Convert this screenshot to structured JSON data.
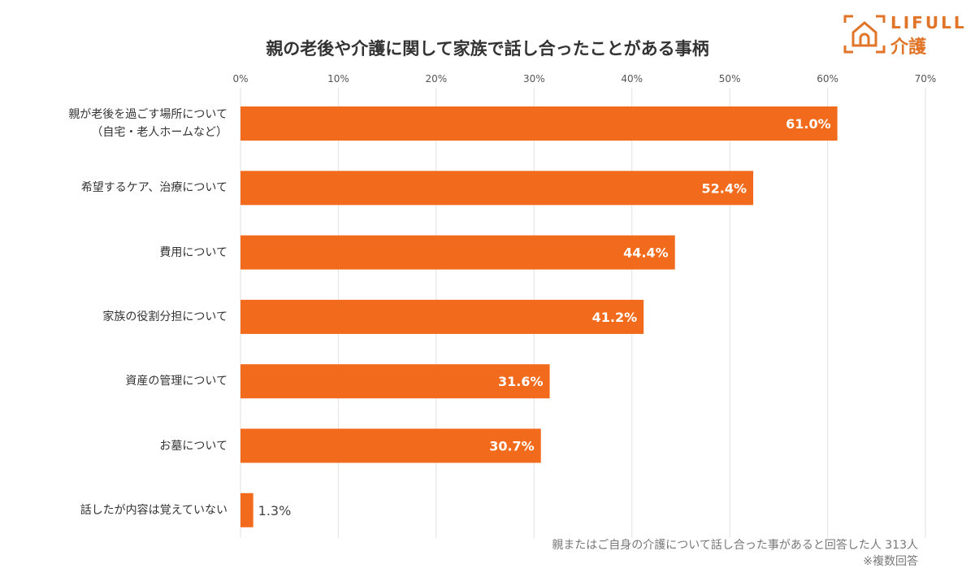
{
  "logo": {
    "text_top": "LIFULL",
    "text_bottom": "介護"
  },
  "chart_data": {
    "type": "bar",
    "orientation": "horizontal",
    "title": "親の老後や介護に関して家族で話し合ったことがある事柄",
    "categories": [
      "親が老後を過ごす場所について\n（自宅・老人ホームなど）",
      "希望するケア、治療について",
      "費用について",
      "家族の役割分担について",
      "資産の管理について",
      "お墓について",
      "話したが内容は覚えていない"
    ],
    "values": [
      61.0,
      52.4,
      44.4,
      41.2,
      31.6,
      30.7,
      1.3
    ],
    "data_labels": [
      "61.0%",
      "52.4%",
      "44.4%",
      "41.2%",
      "31.6%",
      "30.7%",
      "1.3%"
    ],
    "xlim": [
      0,
      70
    ],
    "ticks": [
      "0%",
      "10%",
      "20%",
      "30%",
      "40%",
      "50%",
      "60%",
      "70%"
    ],
    "grid": true,
    "bar_color": "#f26a1b",
    "notes": [
      "親またはご自身の介護について話し合った事があると回答した人 313人",
      "※複数回答"
    ]
  }
}
